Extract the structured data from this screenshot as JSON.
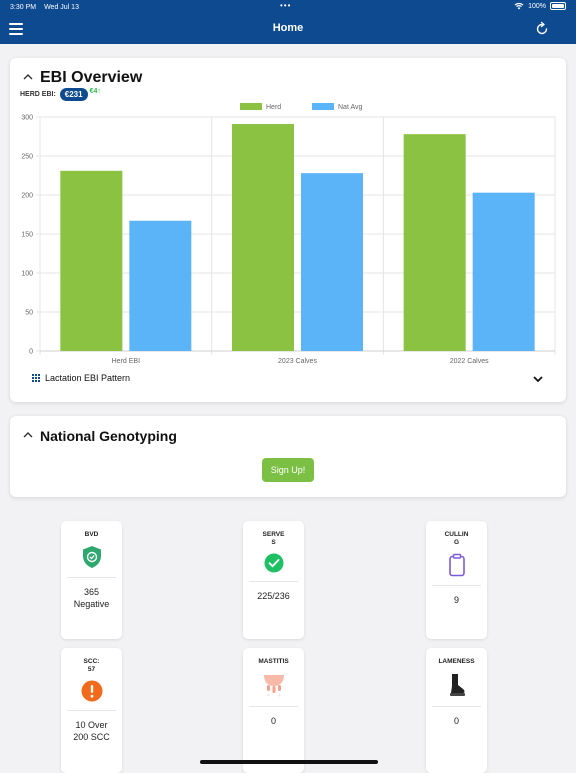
{
  "status_bar": {
    "time": "3:30 PM",
    "date": "Wed Jul 13",
    "dots": "•••",
    "battery": "100%"
  },
  "nav": {
    "title": "Home",
    "menu_icon": "hamburger-icon",
    "refresh_icon": "refresh-icon"
  },
  "ebi_overview": {
    "title": "EBI Overview",
    "herd_ebi_label": "HERD EBI:",
    "herd_ebi_value": "€231",
    "herd_ebi_delta": "€4↑",
    "lactation_label": "Lactation EBI Pattern"
  },
  "chart_data": {
    "type": "bar",
    "categories": [
      "Herd EBI",
      "2023 Calves",
      "2022 Calves"
    ],
    "series": [
      {
        "name": "Herd",
        "values": [
          231,
          291,
          278
        ],
        "color": "#8bc241"
      },
      {
        "name": "Nat Avg",
        "values": [
          167,
          228,
          203
        ],
        "color": "#5ab4f7"
      }
    ],
    "ylim": [
      0,
      300
    ],
    "yticks": [
      0,
      50,
      100,
      150,
      200,
      250,
      300
    ],
    "grid": true,
    "legend": "top-center"
  },
  "genotyping": {
    "title": "National Genotyping",
    "signup_label": "Sign Up!"
  },
  "tiles": [
    {
      "label": "BVD",
      "value": "365 Negative",
      "icon": "shield-check-icon"
    },
    {
      "label": "SERVES",
      "value": "225/236",
      "icon": "check-circle-icon"
    },
    {
      "label": "CULLING",
      "value": "9",
      "icon": "clipboard-icon"
    },
    {
      "label": "SCC: 57",
      "value": "10 Over 200 SCC",
      "icon": "alert-circle-icon"
    },
    {
      "label": "MASTITIS",
      "value": "0",
      "icon": "udder-icon"
    },
    {
      "label": "LAMENESS",
      "value": "0",
      "icon": "hoof-icon"
    }
  ]
}
